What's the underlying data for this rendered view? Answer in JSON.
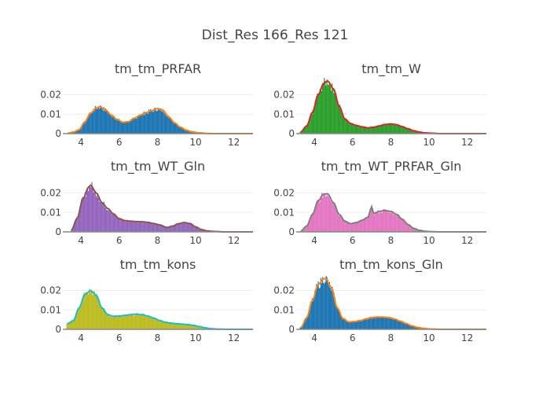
{
  "chart_data": {
    "type": "histogram-grid",
    "title": "Dist_Res 166_Res 121",
    "xlim": [
      3.05,
      13
    ],
    "ylim": [
      0,
      0.0285
    ],
    "xticks": [
      4,
      6,
      8,
      10,
      12
    ],
    "yticks": [
      0,
      0.01,
      0.02
    ],
    "ytick_labels": [
      "0",
      "0.01",
      "0.02"
    ],
    "grid": true,
    "panels": [
      {
        "name": "tm_tm_PRFAR",
        "bar_color": "#1f77b4",
        "line_color": "#ff7f0e",
        "x": [
          3.3,
          3.6,
          3.9,
          4.2,
          4.5,
          4.8,
          5.0,
          5.3,
          5.6,
          5.9,
          6.2,
          6.5,
          6.8,
          7.1,
          7.4,
          7.7,
          8.0,
          8.3,
          8.6,
          8.9,
          9.2,
          9.5,
          9.8,
          10.2,
          10.6,
          11.0,
          11.5,
          12.0,
          12.5,
          13.0
        ],
        "density": [
          0.0002,
          0.0008,
          0.002,
          0.006,
          0.0105,
          0.0132,
          0.0138,
          0.012,
          0.0094,
          0.0072,
          0.0058,
          0.0062,
          0.0079,
          0.0095,
          0.0108,
          0.0118,
          0.0128,
          0.0118,
          0.0085,
          0.0055,
          0.0033,
          0.0018,
          0.0009,
          0.0004,
          0.0001,
          0,
          0,
          0,
          0,
          0
        ]
      },
      {
        "name": "tm_tm_W",
        "bar_color": "#2ca02c",
        "line_color": "#d62728",
        "x": [
          3.3,
          3.6,
          3.9,
          4.2,
          4.5,
          4.7,
          5.0,
          5.3,
          5.6,
          5.9,
          6.2,
          6.5,
          6.8,
          7.1,
          7.4,
          7.7,
          8.0,
          8.3,
          8.6,
          8.9,
          9.2,
          9.5,
          9.8,
          10.2,
          10.6,
          11.0,
          11.5,
          12.0,
          12.5,
          13.0
        ],
        "density": [
          0.001,
          0.004,
          0.011,
          0.02,
          0.026,
          0.027,
          0.023,
          0.014,
          0.0075,
          0.0052,
          0.0042,
          0.0035,
          0.003,
          0.0033,
          0.004,
          0.0047,
          0.005,
          0.0046,
          0.0036,
          0.0025,
          0.0015,
          0.0008,
          0.0004,
          0.0002,
          0,
          0,
          0,
          0,
          0,
          0
        ]
      },
      {
        "name": "tm_tm_WT_Gln",
        "bar_color": "#9467bd",
        "line_color": "#8c564b",
        "x": [
          3.5,
          3.8,
          4.1,
          4.4,
          4.5,
          4.8,
          5.1,
          5.4,
          5.7,
          6.0,
          6.3,
          6.6,
          6.9,
          7.2,
          7.5,
          7.8,
          8.1,
          8.5,
          8.8,
          9.1,
          9.4,
          9.7,
          10.0,
          10.3,
          10.6,
          11.0,
          11.5,
          12.0,
          12.5,
          13.0
        ],
        "density": [
          0.001,
          0.007,
          0.017,
          0.023,
          0.024,
          0.02,
          0.015,
          0.012,
          0.0092,
          0.0068,
          0.0058,
          0.0055,
          0.0053,
          0.0052,
          0.0049,
          0.0043,
          0.0036,
          0.0023,
          0.003,
          0.0042,
          0.0048,
          0.0043,
          0.0026,
          0.0012,
          0.0005,
          0.0002,
          0,
          0,
          0,
          0
        ]
      },
      {
        "name": "tm_tm_WT_PRFAR_Gln",
        "bar_color": "#e377c2",
        "line_color": "#7f7f7f",
        "x": [
          3.3,
          3.6,
          3.9,
          4.2,
          4.5,
          4.7,
          5.0,
          5.3,
          5.6,
          5.9,
          6.2,
          6.5,
          6.8,
          7.0,
          7.1,
          7.4,
          7.7,
          8.0,
          8.3,
          8.6,
          8.9,
          9.2,
          9.5,
          9.8,
          10.2,
          10.6,
          11.0,
          12.0,
          12.5,
          13.0
        ],
        "density": [
          0.0005,
          0.003,
          0.009,
          0.016,
          0.0195,
          0.0195,
          0.015,
          0.009,
          0.0055,
          0.0042,
          0.0048,
          0.006,
          0.0075,
          0.0128,
          0.0095,
          0.0105,
          0.011,
          0.0105,
          0.009,
          0.0065,
          0.0038,
          0.0018,
          0.0008,
          0.0003,
          0.0001,
          0,
          0,
          0,
          0,
          0
        ]
      },
      {
        "name": "tm_tm_kons",
        "bar_color": "#bcbd22",
        "line_color": "#17becf",
        "x": [
          3.3,
          3.6,
          3.9,
          4.2,
          4.5,
          4.8,
          5.1,
          5.4,
          5.7,
          6.0,
          6.3,
          6.6,
          6.9,
          7.2,
          7.5,
          7.8,
          8.1,
          8.4,
          8.7,
          9.0,
          9.3,
          9.6,
          9.9,
          10.2,
          10.5,
          10.8,
          11.2,
          11.8,
          12.4,
          13.0
        ],
        "density": [
          0.003,
          0.0045,
          0.011,
          0.018,
          0.0198,
          0.0175,
          0.011,
          0.0075,
          0.0067,
          0.0068,
          0.0072,
          0.0076,
          0.0078,
          0.0075,
          0.0068,
          0.0058,
          0.0046,
          0.0037,
          0.0032,
          0.0029,
          0.0027,
          0.0024,
          0.002,
          0.0014,
          0.0008,
          0.0003,
          0.0001,
          0,
          0,
          0
        ]
      },
      {
        "name": "tm_tm_kons_Gln",
        "bar_color": "#1f77b4",
        "line_color": "#ff7f0e",
        "x": [
          3.3,
          3.6,
          3.9,
          4.2,
          4.5,
          4.6,
          4.9,
          5.2,
          5.5,
          5.8,
          6.1,
          6.4,
          6.7,
          7.0,
          7.3,
          7.6,
          7.9,
          8.2,
          8.5,
          8.8,
          9.1,
          9.4,
          9.7,
          10.0,
          10.3,
          10.6,
          11.0,
          12.0,
          12.5,
          13.0
        ],
        "density": [
          0.001,
          0.006,
          0.015,
          0.023,
          0.026,
          0.026,
          0.021,
          0.011,
          0.0055,
          0.0038,
          0.004,
          0.0045,
          0.0053,
          0.006,
          0.0063,
          0.0063,
          0.006,
          0.0053,
          0.0042,
          0.003,
          0.0018,
          0.001,
          0.0005,
          0.0002,
          0.0001,
          0,
          0,
          0,
          0,
          0
        ]
      }
    ]
  }
}
